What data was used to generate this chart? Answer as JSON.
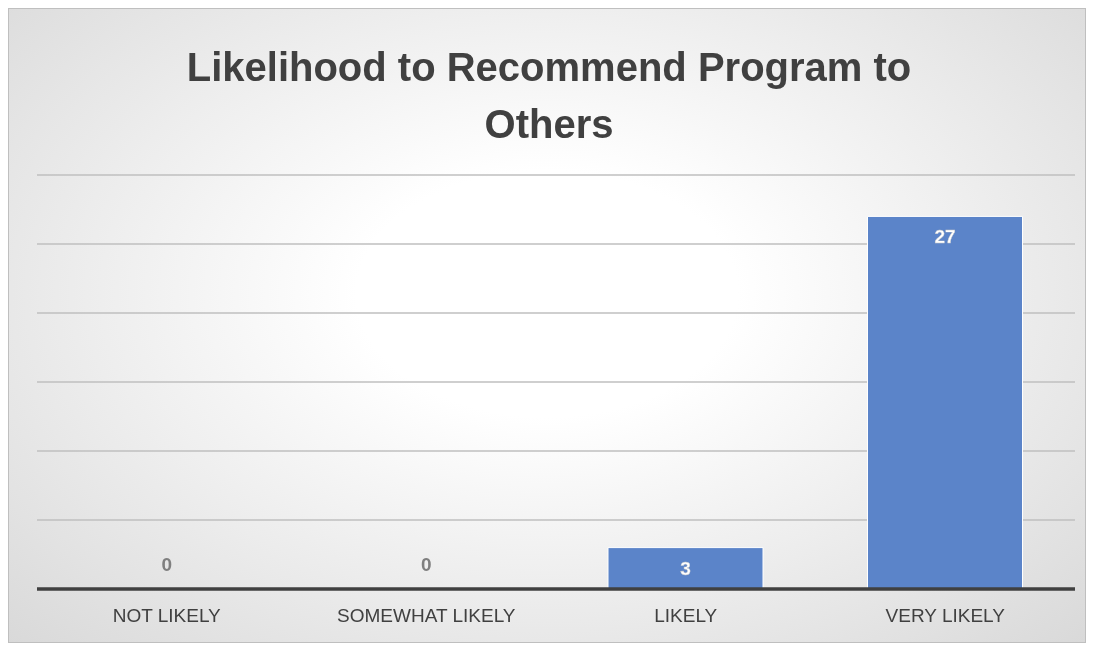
{
  "chart_data": {
    "type": "bar",
    "title": "Likelihood to Recommend Program to Others",
    "categories": [
      "NOT LIKELY",
      "SOMEWHAT LIKELY",
      "LIKELY",
      "VERY LIKELY"
    ],
    "values": [
      0,
      0,
      3,
      27
    ],
    "color": "#5b84c9",
    "grid": "y",
    "tick_labels": "x",
    "data_labels": true
  }
}
